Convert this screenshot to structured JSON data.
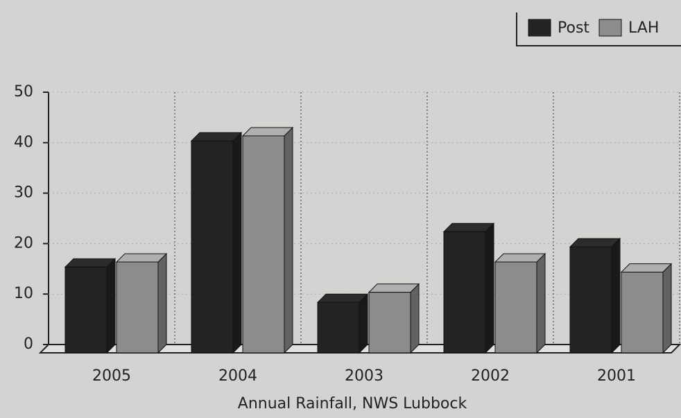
{
  "chart_data": {
    "type": "bar3d",
    "x_label": "Annual Rainfall, NWS Lubbock",
    "categories": [
      "2005",
      "2004",
      "2003",
      "2002",
      "2001"
    ],
    "series": [
      {
        "name": "Post",
        "color": "#232323",
        "values": [
          17,
          42,
          10,
          24,
          21
        ]
      },
      {
        "name": "LAH",
        "color": "#8c8c8c",
        "values": [
          18,
          43,
          12,
          18,
          16
        ]
      }
    ],
    "ylim": [
      0,
      50
    ],
    "yticks": [
      0,
      10,
      20,
      30,
      40,
      50
    ],
    "grid": true,
    "legend": "top-right"
  }
}
